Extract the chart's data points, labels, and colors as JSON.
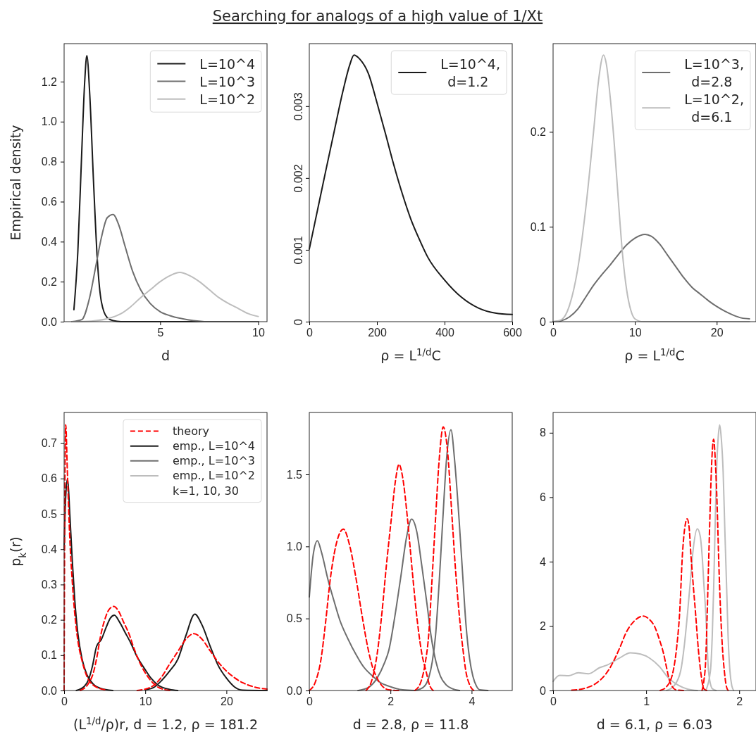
{
  "chart_data": [
    {
      "type": "line",
      "title": "Searching for analogs of a high value of 1/Xt",
      "xlabel": "d",
      "ylabel": "Empirical density",
      "xlim": [
        0.1,
        10.45
      ],
      "ylim": [
        0,
        1.39
      ],
      "xticks": [
        5,
        10
      ],
      "yticks": [
        {
          "value": 0,
          "label": "0.0"
        },
        {
          "value": 0.2,
          "label": "0.2"
        },
        {
          "value": 0.4,
          "label": "0.4"
        },
        {
          "value": 0.6,
          "label": "0.6"
        },
        {
          "value": 0.8,
          "label": "0.8"
        },
        {
          "value": 1.0,
          "label": "1.0"
        },
        {
          "value": 1.2,
          "label": "1.2"
        }
      ],
      "legend": "top right",
      "series": [
        {
          "name": "L=10^4",
          "color": "#1a1a1a",
          "x": [
            0.6,
            0.8,
            1.0,
            1.15,
            1.26,
            1.4,
            1.6,
            1.8,
            2.0,
            2.3,
            2.6,
            3,
            4,
            5,
            7,
            10
          ],
          "values": [
            0.06,
            0.35,
            0.85,
            1.2,
            1.33,
            1.15,
            0.7,
            0.3,
            0.1,
            0.02,
            0.005,
            0,
            0,
            0,
            0,
            0
          ]
        },
        {
          "name": "L=10^3",
          "color": "#6e6e6e",
          "x": [
            0.5,
            1.0,
            1.4,
            1.74,
            2.0,
            2.3,
            2.6,
            2.9,
            3.2,
            3.6,
            4.0,
            4.5,
            5.0,
            5.5,
            6.4,
            7.5,
            10
          ],
          "values": [
            0,
            0.01,
            0.12,
            0.29,
            0.42,
            0.52,
            0.536,
            0.48,
            0.38,
            0.25,
            0.16,
            0.09,
            0.05,
            0.03,
            0.01,
            0,
            0
          ]
        },
        {
          "name": "L=10^2",
          "color": "#bdbdbd",
          "x": [
            0.5,
            1.5,
            2.5,
            3.0,
            3.5,
            4.0,
            4.5,
            5.0,
            5.5,
            6.0,
            6.5,
            7.0,
            7.5,
            8.0,
            8.5,
            9.0,
            9.5,
            10
          ],
          "values": [
            0,
            0.003,
            0.02,
            0.04,
            0.075,
            0.12,
            0.16,
            0.2,
            0.23,
            0.246,
            0.23,
            0.2,
            0.16,
            0.12,
            0.09,
            0.065,
            0.04,
            0.026
          ]
        }
      ]
    },
    {
      "type": "line",
      "xlabel": "ρ = L$^{1/d}$C",
      "xlim": [
        0,
        600
      ],
      "ylim": [
        0,
        0.00387
      ],
      "xticks": [
        0,
        200,
        400,
        600
      ],
      "yticks": [
        0,
        0.001,
        0.002,
        0.003
      ],
      "legend": "top right",
      "series": [
        {
          "name": "L=10^4,\nd=1.2",
          "color": "#1a1a1a",
          "x": [
            0,
            25,
            50,
            75,
            100,
            120,
            132,
            150,
            175,
            200,
            225,
            250,
            275,
            300,
            325,
            350,
            400,
            450,
            500,
            550,
            600
          ],
          "values": [
            0.00101,
            0.00157,
            0.00213,
            0.00268,
            0.00322,
            0.00358,
            0.00371,
            0.00365,
            0.00345,
            0.00305,
            0.00262,
            0.00218,
            0.00178,
            0.00143,
            0.00115,
            0.0009,
            0.00058,
            0.00034,
            0.00019,
            0.00012,
            0.0001
          ]
        }
      ]
    },
    {
      "type": "line",
      "xlabel": "ρ = L$^{1/d}$C",
      "xlim": [
        0,
        24.8
      ],
      "ylim": [
        0,
        0.293
      ],
      "xticks": [
        0,
        10,
        20
      ],
      "yticks": [
        0,
        0.1,
        0.2
      ],
      "legend": "top right",
      "series": [
        {
          "name": "L=10^3,\nd=2.8",
          "color": "#6e6e6e",
          "x": [
            0,
            1,
            2,
            3,
            4,
            5,
            6,
            7,
            8,
            9,
            10,
            11.25,
            12,
            13,
            14,
            15,
            16,
            17,
            18,
            19,
            20,
            21,
            22,
            23,
            24
          ],
          "values": [
            0,
            0.001,
            0.005,
            0.013,
            0.026,
            0.039,
            0.05,
            0.06,
            0.071,
            0.081,
            0.088,
            0.092,
            0.09,
            0.082,
            0.07,
            0.058,
            0.046,
            0.036,
            0.029,
            0.022,
            0.016,
            0.011,
            0.007,
            0.004,
            0.003
          ]
        },
        {
          "name": "L=10^2,\nd=6.1",
          "color": "#bdbdbd",
          "x": [
            0,
            1,
            2,
            3,
            4,
            5,
            5.5,
            6.17,
            6.5,
            7,
            7.5,
            8,
            8.5,
            9,
            9.5,
            10,
            11,
            24
          ],
          "values": [
            0,
            0.002,
            0.017,
            0.055,
            0.12,
            0.205,
            0.25,
            0.281,
            0.272,
            0.235,
            0.185,
            0.125,
            0.07,
            0.033,
            0.012,
            0.003,
            0,
            0
          ]
        }
      ]
    },
    {
      "type": "line",
      "xlabel": "(L$^{1/d}$/ρ)r, d = 1.2, ρ = 181.2",
      "ylabel": "p$_{k}$(r)",
      "xlim": [
        0,
        25
      ],
      "ylim": [
        0,
        0.787
      ],
      "xticks": [
        0,
        10,
        20
      ],
      "yticks": [
        {
          "value": 0,
          "label": "0.0"
        },
        {
          "value": 0.1,
          "label": "0.1"
        },
        {
          "value": 0.2,
          "label": "0.2"
        },
        {
          "value": 0.3,
          "label": "0.3"
        },
        {
          "value": 0.4,
          "label": "0.4"
        },
        {
          "value": 0.5,
          "label": "0.5"
        },
        {
          "value": 0.6,
          "label": "0.6"
        },
        {
          "value": 0.7,
          "label": "0.7"
        }
      ],
      "legend": "top right",
      "annotations": [
        "k=1, 10, 30"
      ],
      "series": [
        {
          "name": "theory",
          "color": "#ff0000",
          "line_style": "dashed",
          "x": [
            0,
            0.1,
            0.2,
            0.4,
            0.7,
            1.0,
            1.3,
            1.7,
            2.2,
            2.8,
            3.6,
            5
          ],
          "values": [
            0,
            0.6,
            0.752,
            0.62,
            0.43,
            0.31,
            0.22,
            0.14,
            0.085,
            0.04,
            0.015,
            0.002
          ]
        },
        {
          "color": "#ff0000",
          "line_style": "dashed",
          "x": [
            2,
            3,
            3.6,
            4,
            4.5,
            5,
            5.5,
            6.1,
            6.7,
            7.3,
            8,
            8.6,
            9.3,
            10,
            10.8,
            11.6,
            13
          ],
          "values": [
            0,
            0.02,
            0.05,
            0.09,
            0.155,
            0.2,
            0.228,
            0.238,
            0.225,
            0.195,
            0.16,
            0.12,
            0.08,
            0.05,
            0.025,
            0.009,
            0
          ]
        },
        {
          "color": "#ff0000",
          "line_style": "dashed",
          "x": [
            9,
            10,
            11,
            12,
            13,
            14,
            15,
            16,
            17,
            18,
            19,
            20,
            21,
            22,
            23,
            24,
            25
          ],
          "values": [
            0,
            0.004,
            0.014,
            0.038,
            0.075,
            0.11,
            0.145,
            0.161,
            0.145,
            0.112,
            0.08,
            0.055,
            0.036,
            0.022,
            0.013,
            0.007,
            0.004
          ]
        },
        {
          "name": "emp., L=10^4",
          "color": "#1a1a1a",
          "x": [
            0,
            0.2,
            0.43,
            0.7,
            1.0,
            1.3,
            1.7,
            2.2,
            2.8,
            3.6,
            4.5,
            6
          ],
          "values": [
            0.4,
            0.55,
            0.6,
            0.5,
            0.37,
            0.26,
            0.16,
            0.09,
            0.045,
            0.018,
            0.006,
            0
          ]
        },
        {
          "color": "#1a1a1a",
          "x": [
            1.5,
            2.5,
            3.0,
            3.5,
            4.0,
            4.6,
            5.2,
            5.7,
            6.2,
            6.8,
            7.5,
            8.2,
            9,
            9.9,
            10.7,
            11.6,
            13,
            14
          ],
          "values": [
            0,
            0.012,
            0.03,
            0.07,
            0.125,
            0.145,
            0.18,
            0.205,
            0.213,
            0.195,
            0.165,
            0.135,
            0.095,
            0.062,
            0.035,
            0.015,
            0.003,
            0
          ]
        },
        {
          "color": "#1a1a1a",
          "x": [
            10,
            11,
            12,
            13,
            14,
            15,
            16.1,
            17,
            18,
            19,
            20,
            21,
            22,
            25
          ],
          "values": [
            0.002,
            0.008,
            0.028,
            0.055,
            0.088,
            0.155,
            0.216,
            0.185,
            0.125,
            0.07,
            0.035,
            0.01,
            0.001,
            0
          ]
        },
        {
          "name": "emp., L=10^3",
          "color": "#6e6e6e"
        },
        {
          "name": "emp., L=10^2",
          "color": "#bdbdbd"
        }
      ]
    },
    {
      "type": "line",
      "xlabel": "d = 2.8, ρ = 11.8",
      "xlim": [
        0,
        5
      ],
      "ylim": [
        0,
        1.93
      ],
      "xticks": [
        0,
        2,
        4
      ],
      "yticks": [
        {
          "value": 0,
          "label": "0.0"
        },
        {
          "value": 0.5,
          "label": "0.5"
        },
        {
          "value": 1.0,
          "label": "1.0"
        },
        {
          "value": 1.5,
          "label": "1.5"
        }
      ],
      "series": [
        {
          "color": "#ff0000",
          "line_style": "dashed",
          "x": [
            0,
            0.15,
            0.29,
            0.4,
            0.52,
            0.65,
            0.84,
            1.0,
            1.15,
            1.3,
            1.44,
            1.55,
            1.67,
            1.8,
            1.96,
            2.2
          ],
          "values": [
            0,
            0.06,
            0.22,
            0.47,
            0.78,
            1.0,
            1.12,
            1.0,
            0.78,
            0.52,
            0.3,
            0.17,
            0.086,
            0.03,
            0.005,
            0
          ]
        },
        {
          "color": "#ff0000",
          "line_style": "dashed",
          "x": [
            1.4,
            1.55,
            1.67,
            1.79,
            1.9,
            2.02,
            2.12,
            2.21,
            2.3,
            2.42,
            2.53,
            2.65,
            2.77,
            2.88,
            2.96,
            3.05
          ],
          "values": [
            0,
            0.08,
            0.25,
            0.54,
            0.87,
            1.19,
            1.45,
            1.57,
            1.48,
            1.19,
            0.85,
            0.51,
            0.26,
            0.13,
            0.04,
            0
          ]
        },
        {
          "color": "#ff0000",
          "line_style": "dashed",
          "x": [
            2.6,
            2.75,
            2.85,
            2.94,
            3.03,
            3.11,
            3.2,
            3.3,
            3.4,
            3.52,
            3.6,
            3.69,
            3.78,
            3.86,
            3.95,
            4.05
          ],
          "values": [
            0,
            0.06,
            0.18,
            0.38,
            0.8,
            1.19,
            1.6,
            1.83,
            1.68,
            1.19,
            0.85,
            0.54,
            0.3,
            0.13,
            0.04,
            0
          ]
        },
        {
          "color": "#6e6e6e",
          "x": [
            0,
            0.1,
            0.2,
            0.3,
            0.46,
            0.6,
            0.75,
            0.95,
            1.15,
            1.35,
            1.56,
            1.75,
            1.96,
            2.3,
            2.6
          ],
          "values": [
            0.65,
            0.95,
            1.04,
            0.96,
            0.77,
            0.63,
            0.49,
            0.36,
            0.25,
            0.16,
            0.1,
            0.055,
            0.03,
            0.005,
            0
          ]
        },
        {
          "color": "#6e6e6e",
          "x": [
            1.2,
            1.45,
            1.67,
            1.85,
            1.96,
            2.1,
            2.25,
            2.4,
            2.52,
            2.65,
            2.77,
            2.9,
            3.0,
            3.12,
            3.23,
            3.37,
            3.52,
            3.7
          ],
          "values": [
            0,
            0.02,
            0.086,
            0.19,
            0.28,
            0.5,
            0.78,
            1.07,
            1.19,
            1.1,
            0.87,
            0.6,
            0.38,
            0.2,
            0.1,
            0.04,
            0.013,
            0
          ]
        },
        {
          "color": "#6e6e6e",
          "x": [
            2.6,
            2.8,
            2.94,
            3.03,
            3.11,
            3.2,
            3.29,
            3.38,
            3.49,
            3.58,
            3.69,
            3.78,
            3.86,
            3.95,
            4.03,
            4.12,
            4.2,
            4.4
          ],
          "values": [
            0,
            0.02,
            0.086,
            0.2,
            0.38,
            0.75,
            1.19,
            1.6,
            1.81,
            1.6,
            1.19,
            0.8,
            0.46,
            0.22,
            0.1,
            0.03,
            0.005,
            0
          ]
        }
      ]
    },
    {
      "type": "line",
      "xlabel": "d = 6.1, ρ = 6.03",
      "xlim": [
        0,
        2.18
      ],
      "ylim": [
        0,
        8.63
      ],
      "xticks": [
        0,
        1,
        2
      ],
      "yticks": [
        0,
        2,
        4,
        6,
        8
      ],
      "series": [
        {
          "color": "#ff0000",
          "line_style": "dashed",
          "x": [
            0.2,
            0.33,
            0.45,
            0.53,
            0.6,
            0.66,
            0.72,
            0.78,
            0.87,
            0.97,
            1.03,
            1.09,
            1.14,
            1.19,
            1.22,
            1.25,
            1.28,
            1.32,
            1.4
          ],
          "values": [
            0.01,
            0.06,
            0.2,
            0.39,
            0.65,
            0.97,
            1.35,
            1.77,
            2.15,
            2.31,
            2.22,
            1.99,
            1.6,
            1.11,
            0.7,
            0.31,
            0.12,
            0.02,
            0
          ]
        },
        {
          "color": "#ff0000",
          "line_style": "dashed",
          "x": [
            1.15,
            1.22,
            1.29,
            1.33,
            1.36,
            1.39,
            1.42,
            1.44,
            1.46,
            1.48,
            1.505,
            1.53,
            1.56,
            1.585,
            1.62,
            1.65
          ],
          "values": [
            0,
            0.12,
            0.6,
            1.4,
            2.42,
            4.24,
            5.15,
            5.33,
            5.1,
            4.24,
            3.3,
            2.42,
            1.3,
            0.6,
            0.05,
            0
          ]
        },
        {
          "color": "#ff0000",
          "line_style": "dashed",
          "x": [
            1.6,
            1.62,
            1.64,
            1.655,
            1.67,
            1.685,
            1.7,
            1.725,
            1.745,
            1.763,
            1.78,
            1.8,
            1.82,
            1.84,
            1.86,
            1.88
          ],
          "values": [
            0,
            0.3,
            0.97,
            2.3,
            3.88,
            5.4,
            6.79,
            7.8,
            7.0,
            5.7,
            4.0,
            2.42,
            1.3,
            0.6,
            0.15,
            0
          ]
        },
        {
          "color": "#bdbdbd",
          "x": [
            0,
            0.07,
            0.17,
            0.27,
            0.38,
            0.5,
            0.58,
            0.71,
            0.83,
            0.94,
            1.04,
            1.14,
            1.24,
            1.34,
            1.45,
            1.55
          ],
          "values": [
            0.28,
            0.47,
            0.46,
            0.55,
            0.52,
            0.71,
            0.79,
            1.0,
            1.17,
            1.13,
            1.0,
            0.75,
            0.39,
            0.17,
            0.04,
            0
          ]
        },
        {
          "color": "#bdbdbd",
          "x": [
            1.22,
            1.3,
            1.37,
            1.41,
            1.445,
            1.475,
            1.5,
            1.55,
            1.58,
            1.6,
            1.62,
            1.64,
            1.67,
            1.71,
            1.75
          ],
          "values": [
            0,
            0.15,
            0.6,
            1.4,
            2.42,
            3.4,
            4.24,
            5.02,
            4.8,
            4.24,
            3.3,
            2.42,
            0.6,
            0.06,
            0
          ]
        },
        {
          "color": "#bdbdbd",
          "x": [
            1.64,
            1.69,
            1.71,
            1.725,
            1.74,
            1.756,
            1.775,
            1.79,
            1.805,
            1.827,
            1.845,
            1.865,
            1.88,
            1.9,
            1.92,
            1.94
          ],
          "values": [
            0,
            0.6,
            1.7,
            3.15,
            5.0,
            6.79,
            7.9,
            8.24,
            7.9,
            6.79,
            5.0,
            3.15,
            1.7,
            0.6,
            0.15,
            0
          ]
        }
      ]
    }
  ]
}
